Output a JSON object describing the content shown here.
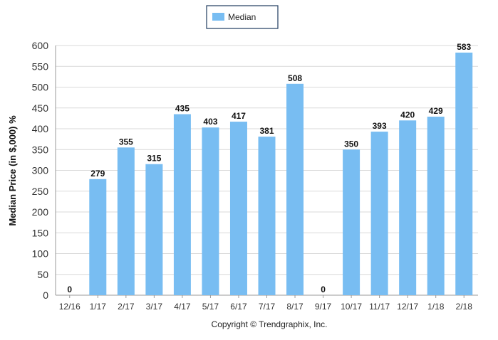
{
  "legend": {
    "series_label": "Median"
  },
  "axis": {
    "ylabel": "Median Price (in $,000) %"
  },
  "footer": {
    "copyright": "Copyright © Trendgraphix, Inc."
  },
  "colors": {
    "bar": "#78bdf2",
    "grid": "#d9d9d9",
    "axis": "#999999",
    "legend_border": "#1f3b5f"
  },
  "chart_data": {
    "type": "bar",
    "categories": [
      "12/16",
      "1/17",
      "2/17",
      "3/17",
      "4/17",
      "5/17",
      "6/17",
      "7/17",
      "8/17",
      "9/17",
      "10/17",
      "11/17",
      "12/17",
      "1/18",
      "2/18"
    ],
    "series": [
      {
        "name": "Median",
        "values": [
          0,
          279,
          355,
          315,
          435,
          403,
          417,
          381,
          508,
          0,
          350,
          393,
          420,
          429,
          583
        ]
      }
    ],
    "data_labels": [
      "0",
      "279",
      "355",
      "315",
      "435",
      "403",
      "417",
      "381",
      "508",
      "0",
      "350",
      "393",
      "420",
      "429",
      "583"
    ],
    "title": "",
    "xlabel": "",
    "ylabel": "Median Price (in $,000) %",
    "ylim": [
      0,
      600
    ],
    "yticks": [
      0,
      50,
      100,
      150,
      200,
      250,
      300,
      350,
      400,
      450,
      500,
      550,
      600
    ],
    "grid": true,
    "legend_position": "top-center"
  }
}
